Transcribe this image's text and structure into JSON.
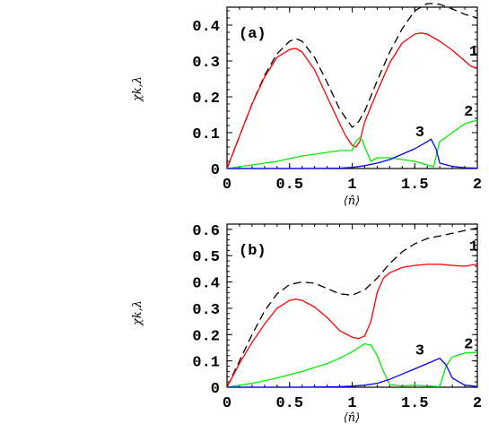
{
  "chart_data": [
    {
      "type": "line",
      "panel_label": "(a)",
      "xlabel": "⟨n̂⟩",
      "ylabel": "χk,λ",
      "xlim": [
        0,
        2
      ],
      "ylim": [
        0,
        0.45
      ],
      "xticks": [
        0,
        0.5,
        1,
        1.5,
        2
      ],
      "xtick_labels": [
        "0",
        "0.5",
        "1",
        "1.5",
        "2"
      ],
      "yticks": [
        0,
        0.1,
        0.2,
        0.3,
        0.4
      ],
      "ytick_labels": [
        "0",
        "0.1",
        "0.2",
        "0.3",
        "0.4"
      ],
      "series": [
        {
          "name": "",
          "color": "#000000",
          "dash": true,
          "x": [
            0,
            0.1,
            0.2,
            0.3,
            0.4,
            0.5,
            0.55,
            0.6,
            0.7,
            0.8,
            0.9,
            1.0,
            1.05,
            1.1,
            1.2,
            1.3,
            1.4,
            1.5,
            1.6,
            1.65,
            1.7,
            1.8,
            1.9,
            2.0
          ],
          "y": [
            0,
            0.09,
            0.18,
            0.26,
            0.32,
            0.355,
            0.362,
            0.355,
            0.31,
            0.24,
            0.165,
            0.115,
            0.13,
            0.16,
            0.245,
            0.325,
            0.39,
            0.44,
            0.46,
            0.46,
            0.458,
            0.445,
            0.43,
            0.42
          ]
        },
        {
          "name": "1",
          "color": "#ff0000",
          "x": [
            0,
            0.1,
            0.2,
            0.3,
            0.4,
            0.5,
            0.55,
            0.6,
            0.7,
            0.8,
            0.9,
            0.95,
            1.0,
            1.03,
            1.06,
            1.1,
            1.2,
            1.3,
            1.4,
            1.5,
            1.55,
            1.6,
            1.7,
            1.8,
            1.9,
            1.95,
            2.0
          ],
          "y": [
            0,
            0.09,
            0.18,
            0.255,
            0.31,
            0.332,
            0.335,
            0.325,
            0.275,
            0.2,
            0.125,
            0.09,
            0.065,
            0.06,
            0.075,
            0.13,
            0.215,
            0.295,
            0.35,
            0.375,
            0.378,
            0.375,
            0.355,
            0.33,
            0.3,
            0.285,
            0.28
          ]
        },
        {
          "name": "2",
          "color": "#00ee00",
          "x": [
            0,
            0.2,
            0.4,
            0.6,
            0.8,
            0.9,
            1.0,
            1.02,
            1.04,
            1.06,
            1.08,
            1.1,
            1.15,
            1.2,
            1.3,
            1.4,
            1.5,
            1.55,
            1.6,
            1.65,
            1.7,
            1.8,
            1.9,
            2.0
          ],
          "y": [
            0,
            0.01,
            0.02,
            0.035,
            0.045,
            0.05,
            0.05,
            0.07,
            0.08,
            0.085,
            0.08,
            0.06,
            0.02,
            0.03,
            0.03,
            0.025,
            0.02,
            0.015,
            0.01,
            0.005,
            0.075,
            0.1,
            0.125,
            0.135
          ]
        },
        {
          "name": "3",
          "color": "#0000ff",
          "x": [
            0,
            0.6,
            0.9,
            1.0,
            1.1,
            1.2,
            1.3,
            1.4,
            1.5,
            1.55,
            1.6,
            1.63,
            1.67,
            1.7,
            1.8,
            1.9,
            2.0
          ],
          "y": [
            0,
            0,
            0.001,
            0.003,
            0.008,
            0.015,
            0.025,
            0.04,
            0.055,
            0.065,
            0.075,
            0.082,
            0.055,
            0.015,
            0.006,
            0.002,
            0.001
          ]
        }
      ],
      "curve_labels": [
        {
          "text": "1",
          "x": 1.97,
          "y": 0.315
        },
        {
          "text": "2",
          "x": 1.93,
          "y": 0.148
        },
        {
          "text": "3",
          "x": 1.54,
          "y": 0.09
        }
      ]
    },
    {
      "type": "line",
      "panel_label": "(b)",
      "xlabel": "⟨n̂⟩",
      "ylabel": "χk,λ",
      "xlim": [
        0,
        2
      ],
      "ylim": [
        0,
        0.62
      ],
      "xticks": [
        0,
        0.5,
        1,
        1.5,
        2
      ],
      "xtick_labels": [
        "0",
        "0.5",
        "1",
        "1.5",
        "2"
      ],
      "yticks": [
        0,
        0.1,
        0.2,
        0.3,
        0.4,
        0.5,
        0.6
      ],
      "ytick_labels": [
        "0",
        "0.1",
        "0.2",
        "0.3",
        "0.4",
        "0.5",
        "0.6"
      ],
      "series": [
        {
          "name": "",
          "color": "#000000",
          "dash": true,
          "x": [
            0,
            0.1,
            0.2,
            0.3,
            0.4,
            0.5,
            0.6,
            0.7,
            0.8,
            0.9,
            1.0,
            1.1,
            1.2,
            1.3,
            1.4,
            1.5,
            1.6,
            1.7,
            1.8,
            1.9,
            2.0
          ],
          "y": [
            0,
            0.1,
            0.2,
            0.29,
            0.355,
            0.39,
            0.4,
            0.395,
            0.375,
            0.355,
            0.35,
            0.37,
            0.415,
            0.47,
            0.515,
            0.545,
            0.565,
            0.575,
            0.585,
            0.595,
            0.605
          ]
        },
        {
          "name": "1",
          "color": "#ff0000",
          "x": [
            0,
            0.1,
            0.2,
            0.3,
            0.4,
            0.5,
            0.55,
            0.6,
            0.7,
            0.8,
            0.9,
            1.0,
            1.05,
            1.1,
            1.15,
            1.2,
            1.25,
            1.3,
            1.4,
            1.5,
            1.6,
            1.7,
            1.8,
            1.9,
            2.0
          ],
          "y": [
            0,
            0.09,
            0.17,
            0.24,
            0.3,
            0.33,
            0.335,
            0.33,
            0.305,
            0.265,
            0.215,
            0.19,
            0.185,
            0.195,
            0.25,
            0.36,
            0.415,
            0.435,
            0.455,
            0.463,
            0.467,
            0.467,
            0.463,
            0.46,
            0.468
          ]
        },
        {
          "name": "2",
          "color": "#00ee00",
          "x": [
            0,
            0.2,
            0.4,
            0.6,
            0.8,
            0.9,
            1.0,
            1.05,
            1.1,
            1.15,
            1.2,
            1.25,
            1.3,
            1.4,
            1.5,
            1.6,
            1.7,
            1.75,
            1.8,
            1.9,
            2.0
          ],
          "y": [
            0,
            0.015,
            0.035,
            0.06,
            0.09,
            0.11,
            0.135,
            0.15,
            0.165,
            0.16,
            0.12,
            0.06,
            0.01,
            0.005,
            0.008,
            0.005,
            0.002,
            0.08,
            0.115,
            0.13,
            0.133
          ]
        },
        {
          "name": "3",
          "color": "#0000ff",
          "x": [
            0,
            0.6,
            0.9,
            1.0,
            1.1,
            1.2,
            1.3,
            1.4,
            1.5,
            1.6,
            1.65,
            1.7,
            1.75,
            1.8,
            1.9,
            2.0
          ],
          "y": [
            0,
            0,
            0.002,
            0.004,
            0.008,
            0.015,
            0.03,
            0.05,
            0.07,
            0.09,
            0.1,
            0.11,
            0.085,
            0.035,
            0.008,
            0.003
          ]
        }
      ],
      "curve_labels": [
        {
          "text": "1",
          "x": 1.97,
          "y": 0.52
        },
        {
          "text": "2",
          "x": 1.93,
          "y": 0.148
        },
        {
          "text": "3",
          "x": 1.54,
          "y": 0.125
        }
      ]
    }
  ]
}
